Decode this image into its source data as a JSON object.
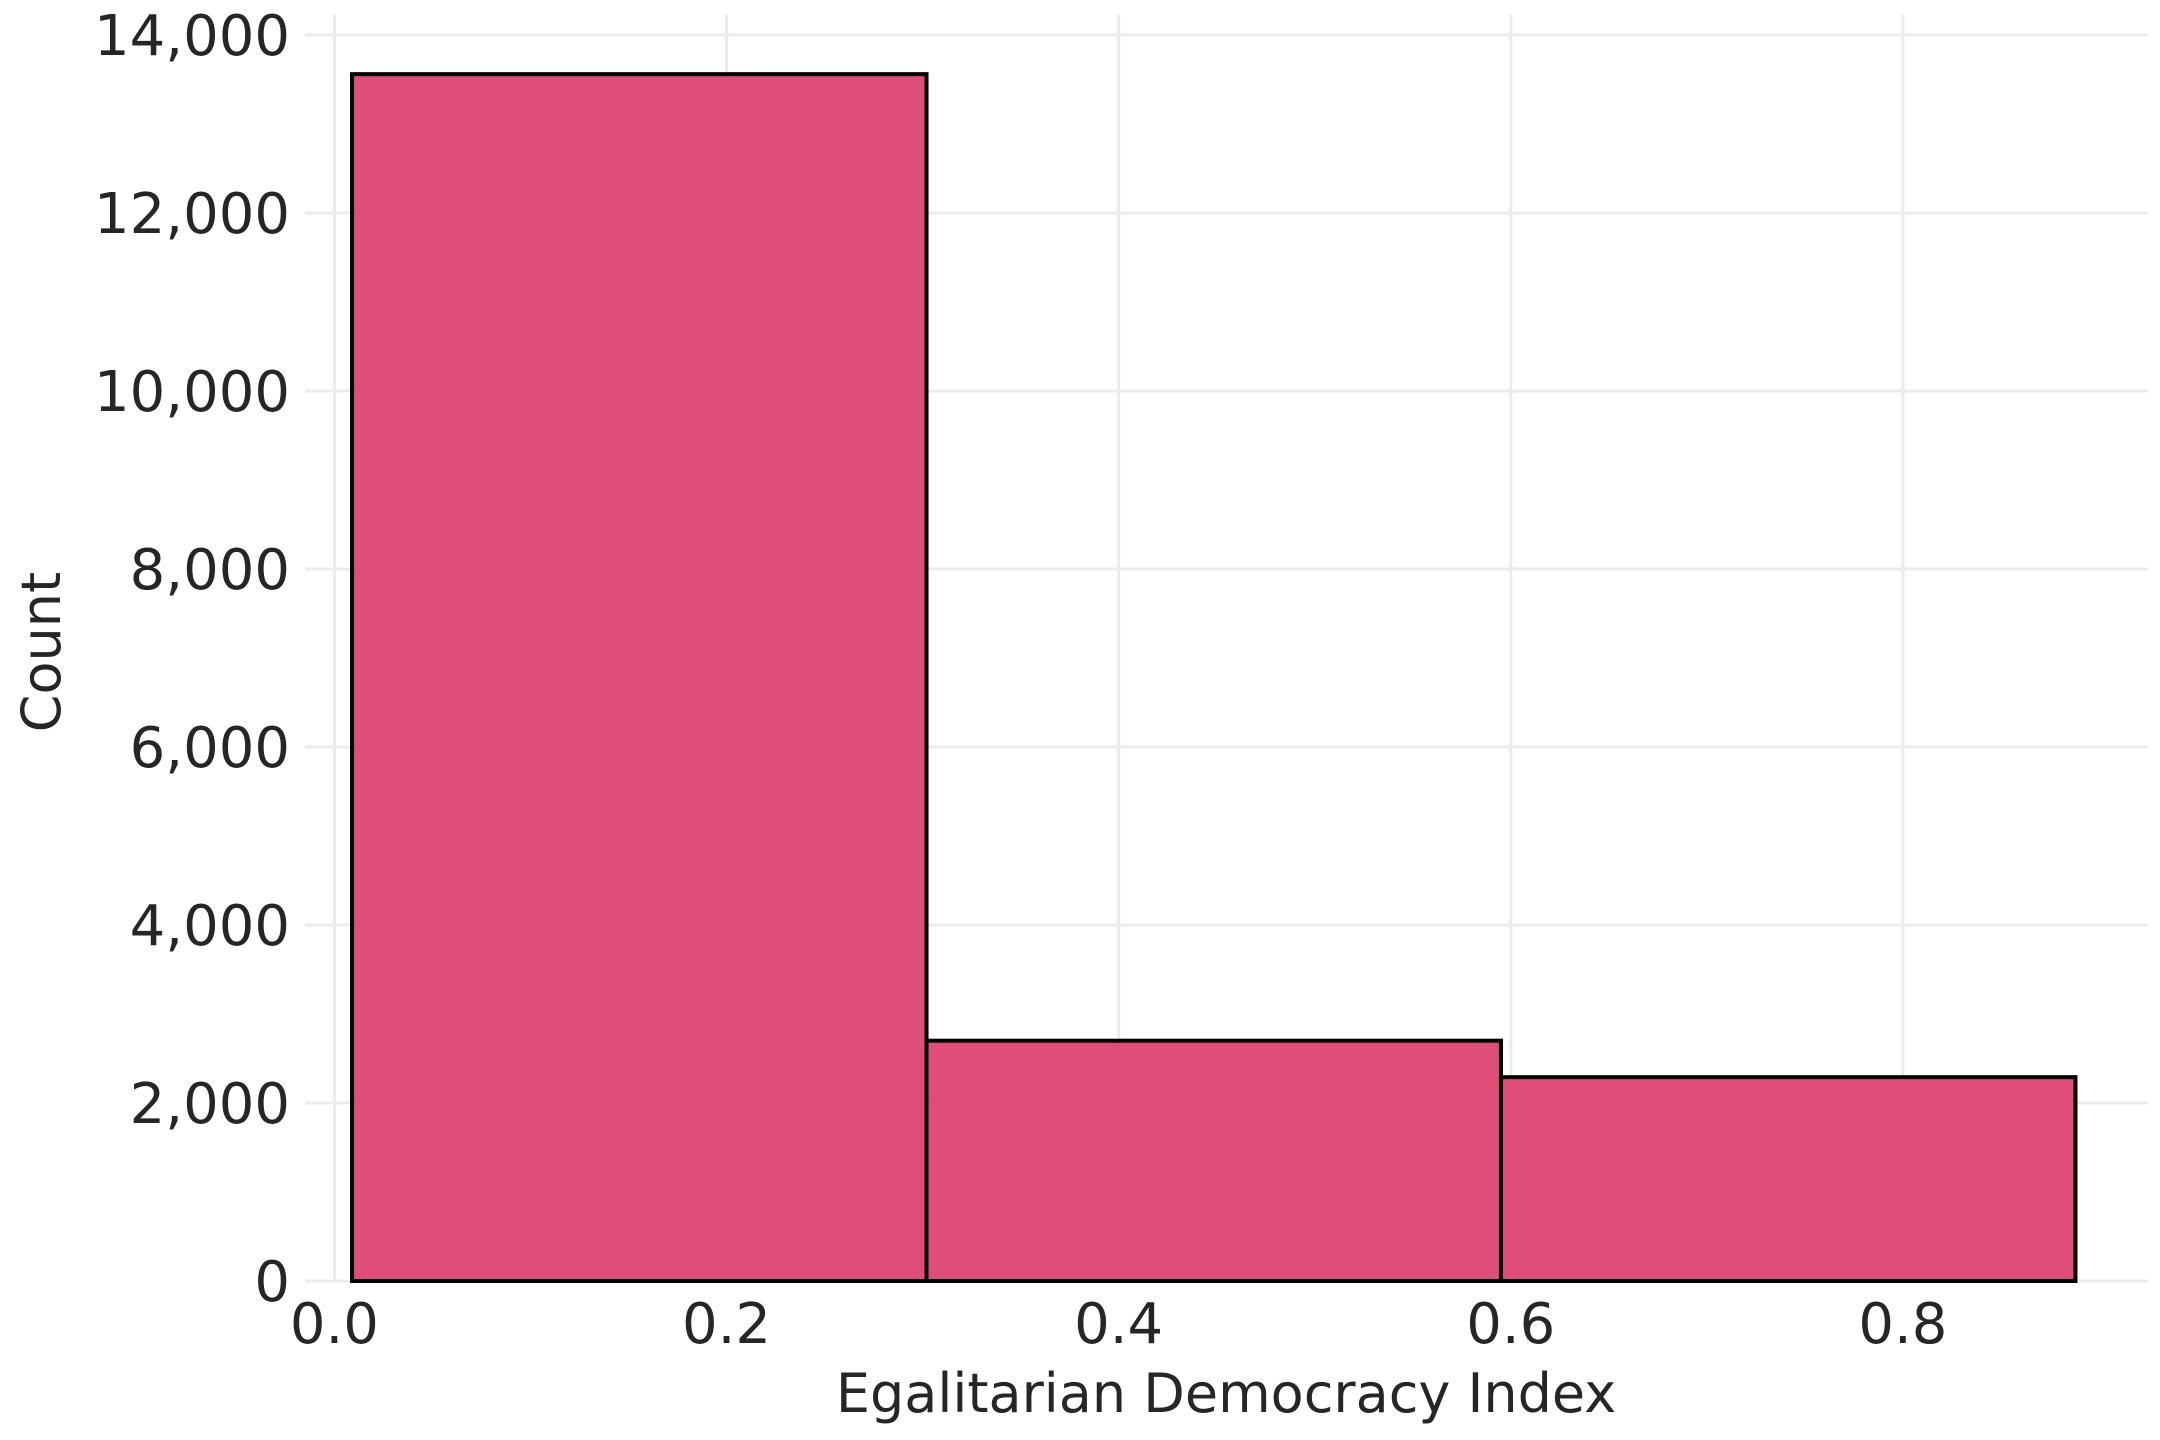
{
  "chart_data": {
    "type": "bar",
    "subtype": "histogram",
    "title": "",
    "xlabel": "Egalitarian Democracy Index",
    "ylabel": "Count",
    "xlim": [
      -0.015,
      0.925
    ],
    "ylim": [
      0,
      14000
    ],
    "xticks": [
      0.0,
      0.2,
      0.4,
      0.6,
      0.8
    ],
    "xtick_labels": [
      "0.0",
      "0.2",
      "0.4",
      "0.6",
      "0.8"
    ],
    "yticks": [
      0,
      2000,
      4000,
      6000,
      8000,
      10000,
      12000,
      14000
    ],
    "ytick_labels": [
      "0",
      "2,000",
      "4,000",
      "6,000",
      "8,000",
      "10,000",
      "12,000",
      "14,000"
    ],
    "bins": [
      {
        "x0": 0.009,
        "x1": 0.302,
        "count": 13560
      },
      {
        "x0": 0.302,
        "x1": 0.595,
        "count": 2700
      },
      {
        "x0": 0.595,
        "x1": 0.888,
        "count": 2290
      }
    ],
    "grid": true,
    "legend": "none",
    "colors": {
      "bar_fill": "#DC4571",
      "bar_edge": "#000000",
      "grid": "#EBEBEB",
      "text": "#262626",
      "background": "#FFFFFF"
    }
  }
}
